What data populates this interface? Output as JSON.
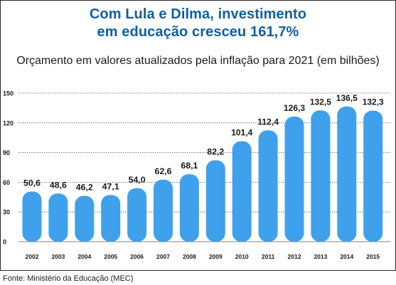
{
  "header": {
    "title_line1": "Com Lula e Dilma, investimento",
    "title_line2": "em educação cresceu 161,7%",
    "subtitle": "Orçamento em valores atualizados pela inflação para 2021 (em bilhões)"
  },
  "footer": {
    "source": "Fonte: Ministério da Educação (MEC)"
  },
  "colors": {
    "title": "#0d5fa5",
    "bar": "#3fa1ec",
    "grid": "#555555"
  },
  "chart_data": {
    "type": "bar",
    "title": "Com Lula e Dilma, investimento em educação cresceu 161,7%",
    "subtitle": "Orçamento em valores atualizados pela inflação para 2021 (em bilhões)",
    "categories": [
      "2002",
      "2003",
      "2004",
      "2005",
      "2006",
      "2007",
      "2008",
      "2009",
      "2010",
      "2011",
      "2012",
      "2013",
      "2014",
      "2015"
    ],
    "values": [
      50.6,
      48.6,
      46.2,
      47.1,
      54.0,
      62.6,
      68.1,
      82.2,
      101.4,
      112.4,
      126.3,
      132.5,
      136.5,
      132.3
    ],
    "value_labels": [
      "50,6",
      "48,6",
      "46,2",
      "47,1",
      "54,0",
      "62,6",
      "68,1",
      "82,2",
      "101,4",
      "112,4",
      "126,3",
      "132,5",
      "136,5",
      "132,3"
    ],
    "yticks": [
      0,
      30,
      60,
      90,
      120,
      150
    ],
    "ylim": [
      0,
      150
    ],
    "xlabel": "",
    "ylabel": "",
    "grid": true,
    "legend": "none"
  }
}
